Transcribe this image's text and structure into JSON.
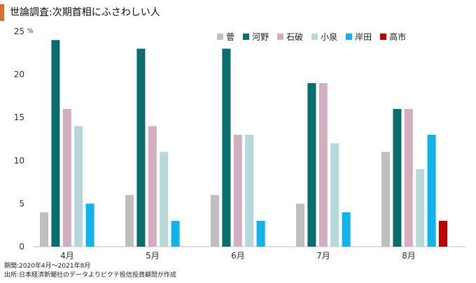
{
  "title": "世論調査:次期首相にふさわしい人",
  "unit": "%",
  "chart_data": {
    "type": "bar",
    "title": "世論調査:次期首相にふさわしい人",
    "categories": [
      "4月",
      "5月",
      "6月",
      "7月",
      "8月"
    ],
    "ylabel": "%",
    "ylim": [
      0,
      25
    ],
    "yticks": [
      0,
      5,
      10,
      15,
      20,
      25
    ],
    "grid": false,
    "legend_position": "top-right",
    "series": [
      {
        "name": "菅",
        "color": "#bfbfbf",
        "values": [
          4,
          6,
          6,
          5,
          11
        ]
      },
      {
        "name": "河野",
        "color": "#0b6e6e",
        "values": [
          24,
          23,
          23,
          19,
          16
        ]
      },
      {
        "name": "石破",
        "color": "#d3aebf",
        "values": [
          16,
          14,
          13,
          19,
          16
        ]
      },
      {
        "name": "小泉",
        "color": "#b6d8d8",
        "values": [
          14,
          11,
          13,
          12,
          9
        ]
      },
      {
        "name": "岸田",
        "color": "#0fb4ec",
        "values": [
          5,
          3,
          3,
          4,
          13
        ]
      },
      {
        "name": "高市",
        "color": "#c00000",
        "values": [
          null,
          null,
          null,
          null,
          3
        ]
      }
    ]
  },
  "notes": {
    "period": "期間:2020年4月～2021年8月",
    "source": "出所:日本経済新聞社のデータよりピクテ投信投資顧問が作成"
  }
}
